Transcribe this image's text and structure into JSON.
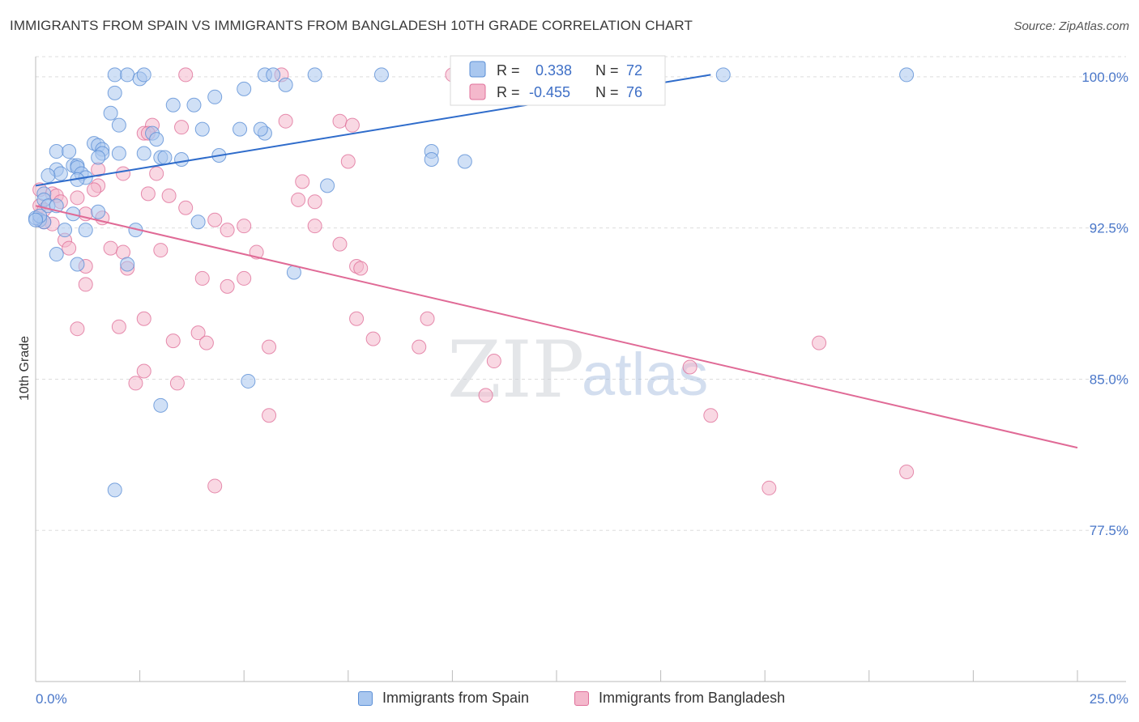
{
  "title": "IMMIGRANTS FROM SPAIN VS IMMIGRANTS FROM BANGLADESH 10TH GRADE CORRELATION CHART",
  "source": "Source: ZipAtlas.com",
  "watermark": {
    "zip": "ZIP",
    "atlas": "atlas"
  },
  "colors": {
    "spain": "#5b8fd6",
    "spain_fill": "#a9c7ef",
    "bangladesh": "#e0709a",
    "bangladesh_fill": "#f4b8cc",
    "tick": "#4a77c9"
  },
  "legend_box": {
    "spain": {
      "r_label": "R =",
      "r_value": "0.338",
      "n_label": "N =",
      "n_value": "72"
    },
    "bangladesh": {
      "r_label": "R =",
      "r_value": "-0.455",
      "n_label": "N =",
      "n_value": "76"
    }
  },
  "chart_data": {
    "type": "scatter",
    "title": "IMMIGRANTS FROM SPAIN VS IMMIGRANTS FROM BANGLADESH 10TH GRADE CORRELATION CHART",
    "xlabel": "",
    "ylabel": "10th Grade",
    "xlim": [
      0,
      25
    ],
    "ylim": [
      70,
      101
    ],
    "x_tick_labels": [
      "0.0%",
      "25.0%"
    ],
    "y_ticks": [
      77.5,
      85.0,
      92.5,
      100.0
    ],
    "y_tick_labels": [
      "77.5%",
      "85.0%",
      "92.5%",
      "100.0%"
    ],
    "grid": true,
    "legend": [
      "Immigrants from Spain",
      "Immigrants from Bangladesh"
    ],
    "series": [
      {
        "name": "Immigrants from Spain",
        "trend": {
          "x": [
            0,
            16.2
          ],
          "y": [
            94.6,
            100.1
          ]
        },
        "points": [
          [
            1.9,
            100.1
          ],
          [
            2.2,
            100.1
          ],
          [
            2.5,
            99.9
          ],
          [
            2.6,
            100.1
          ],
          [
            5.5,
            100.1
          ],
          [
            5.7,
            100.1
          ],
          [
            6.7,
            100.1
          ],
          [
            8.3,
            100.1
          ],
          [
            16.5,
            100.1
          ],
          [
            20.9,
            100.1
          ],
          [
            1.9,
            99.2
          ],
          [
            4.3,
            99.0
          ],
          [
            3.3,
            98.6
          ],
          [
            3.8,
            98.6
          ],
          [
            5.0,
            99.4
          ],
          [
            6.0,
            99.6
          ],
          [
            1.8,
            98.2
          ],
          [
            2.0,
            97.6
          ],
          [
            2.8,
            97.2
          ],
          [
            4.0,
            97.4
          ],
          [
            4.9,
            97.4
          ],
          [
            5.5,
            97.2
          ],
          [
            5.4,
            97.4
          ],
          [
            2.9,
            96.9
          ],
          [
            1.4,
            96.7
          ],
          [
            1.5,
            96.6
          ],
          [
            1.6,
            96.4
          ],
          [
            1.6,
            96.2
          ],
          [
            1.5,
            96.0
          ],
          [
            2.0,
            96.2
          ],
          [
            3.0,
            96.0
          ],
          [
            3.1,
            96.0
          ],
          [
            3.5,
            95.9
          ],
          [
            4.4,
            96.1
          ],
          [
            9.5,
            96.3
          ],
          [
            9.5,
            95.9
          ],
          [
            10.3,
            95.8
          ],
          [
            0.5,
            96.3
          ],
          [
            0.8,
            96.3
          ],
          [
            0.5,
            95.4
          ],
          [
            0.6,
            95.2
          ],
          [
            0.9,
            95.6
          ],
          [
            1.0,
            95.6
          ],
          [
            1.0,
            95.5
          ],
          [
            1.1,
            95.2
          ],
          [
            1.2,
            95.0
          ],
          [
            0.3,
            95.1
          ],
          [
            7.0,
            94.6
          ],
          [
            0.2,
            94.2
          ],
          [
            0.2,
            93.9
          ],
          [
            0.3,
            93.6
          ],
          [
            0.5,
            93.6
          ],
          [
            0.9,
            93.2
          ],
          [
            1.5,
            93.3
          ],
          [
            0.1,
            92.9
          ],
          [
            0.2,
            92.8
          ],
          [
            0.7,
            92.4
          ],
          [
            1.2,
            92.4
          ],
          [
            2.4,
            92.4
          ],
          [
            3.9,
            92.8
          ],
          [
            0.5,
            91.2
          ],
          [
            1.0,
            90.7
          ],
          [
            2.2,
            90.7
          ],
          [
            6.2,
            90.3
          ],
          [
            5.1,
            84.9
          ],
          [
            3.0,
            83.7
          ],
          [
            1.9,
            79.5
          ],
          [
            0.0,
            93.0
          ],
          [
            0.1,
            93.1
          ],
          [
            0.0,
            92.9
          ],
          [
            2.6,
            96.2
          ],
          [
            1.0,
            94.9
          ]
        ]
      },
      {
        "name": "Immigrants from Bangladesh",
        "trend": {
          "x": [
            0,
            25
          ],
          "y": [
            93.6,
            81.6
          ]
        },
        "points": [
          [
            3.6,
            100.1
          ],
          [
            5.9,
            100.1
          ],
          [
            10.0,
            100.1
          ],
          [
            6.0,
            97.8
          ],
          [
            7.3,
            97.8
          ],
          [
            7.6,
            97.6
          ],
          [
            2.8,
            97.6
          ],
          [
            3.5,
            97.5
          ],
          [
            2.6,
            97.2
          ],
          [
            2.7,
            97.2
          ],
          [
            7.5,
            95.8
          ],
          [
            1.5,
            95.4
          ],
          [
            2.1,
            95.2
          ],
          [
            2.9,
            95.2
          ],
          [
            1.5,
            94.6
          ],
          [
            1.4,
            94.4
          ],
          [
            6.4,
            94.8
          ],
          [
            0.1,
            94.4
          ],
          [
            0.4,
            94.2
          ],
          [
            0.5,
            94.1
          ],
          [
            2.7,
            94.2
          ],
          [
            3.2,
            94.1
          ],
          [
            6.3,
            93.9
          ],
          [
            6.7,
            93.8
          ],
          [
            0.1,
            93.6
          ],
          [
            0.2,
            93.4
          ],
          [
            0.6,
            93.8
          ],
          [
            1.0,
            94.0
          ],
          [
            3.6,
            93.5
          ],
          [
            1.2,
            93.2
          ],
          [
            1.6,
            93.0
          ],
          [
            4.3,
            92.9
          ],
          [
            5.0,
            92.6
          ],
          [
            4.6,
            92.4
          ],
          [
            6.7,
            92.6
          ],
          [
            0.4,
            92.7
          ],
          [
            0.1,
            92.9
          ],
          [
            0.2,
            92.8
          ],
          [
            7.3,
            91.7
          ],
          [
            0.7,
            91.9
          ],
          [
            0.8,
            91.5
          ],
          [
            1.8,
            91.5
          ],
          [
            2.1,
            91.3
          ],
          [
            3.0,
            91.4
          ],
          [
            5.3,
            91.3
          ],
          [
            7.7,
            90.6
          ],
          [
            7.8,
            90.5
          ],
          [
            1.2,
            90.6
          ],
          [
            2.2,
            90.5
          ],
          [
            4.0,
            90.0
          ],
          [
            5.0,
            90.0
          ],
          [
            4.6,
            89.6
          ],
          [
            1.2,
            89.7
          ],
          [
            2.6,
            88.0
          ],
          [
            7.7,
            88.0
          ],
          [
            9.4,
            88.0
          ],
          [
            1.0,
            87.5
          ],
          [
            2.0,
            87.6
          ],
          [
            3.9,
            87.3
          ],
          [
            8.1,
            87.0
          ],
          [
            3.3,
            86.9
          ],
          [
            4.1,
            86.8
          ],
          [
            5.6,
            86.6
          ],
          [
            9.2,
            86.6
          ],
          [
            18.8,
            86.8
          ],
          [
            11.0,
            85.9
          ],
          [
            15.7,
            85.6
          ],
          [
            2.6,
            85.4
          ],
          [
            2.4,
            84.8
          ],
          [
            3.4,
            84.8
          ],
          [
            10.8,
            84.2
          ],
          [
            5.6,
            83.2
          ],
          [
            16.2,
            83.2
          ],
          [
            4.3,
            79.7
          ],
          [
            17.6,
            79.6
          ],
          [
            20.9,
            80.4
          ]
        ]
      }
    ]
  }
}
